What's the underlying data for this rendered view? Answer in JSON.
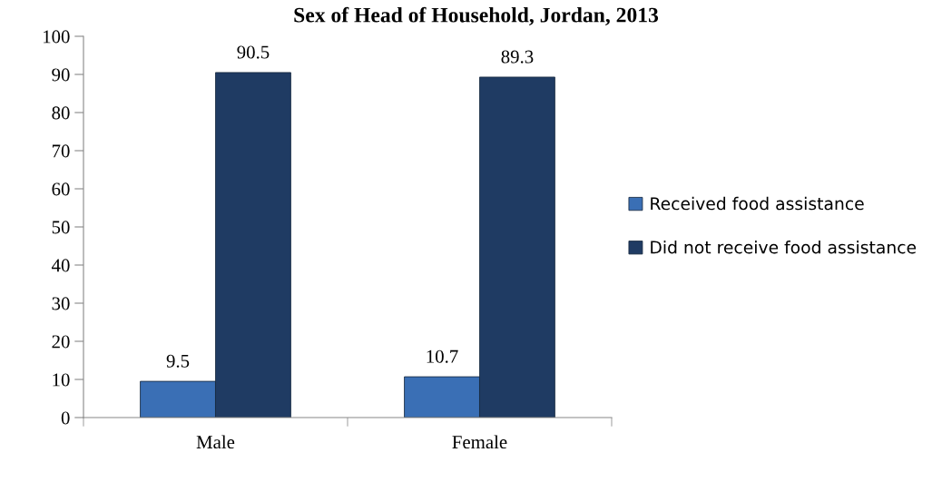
{
  "chart_data": {
    "type": "bar",
    "title": "Sex of Head of Household, Jordan, 2013",
    "categories": [
      "Male",
      "Female"
    ],
    "series": [
      {
        "name": "Received food assistance",
        "color": "#3a6fb5",
        "values": [
          9.5,
          10.7
        ]
      },
      {
        "name": "Did not receive food assistance",
        "color": "#1f3b63",
        "values": [
          90.5,
          89.3
        ]
      }
    ],
    "ylim": [
      0,
      100
    ],
    "yticks": [
      0,
      10,
      20,
      30,
      40,
      50,
      60,
      70,
      80,
      90,
      100
    ],
    "grid": false,
    "legend": "right",
    "data_labels": true
  }
}
